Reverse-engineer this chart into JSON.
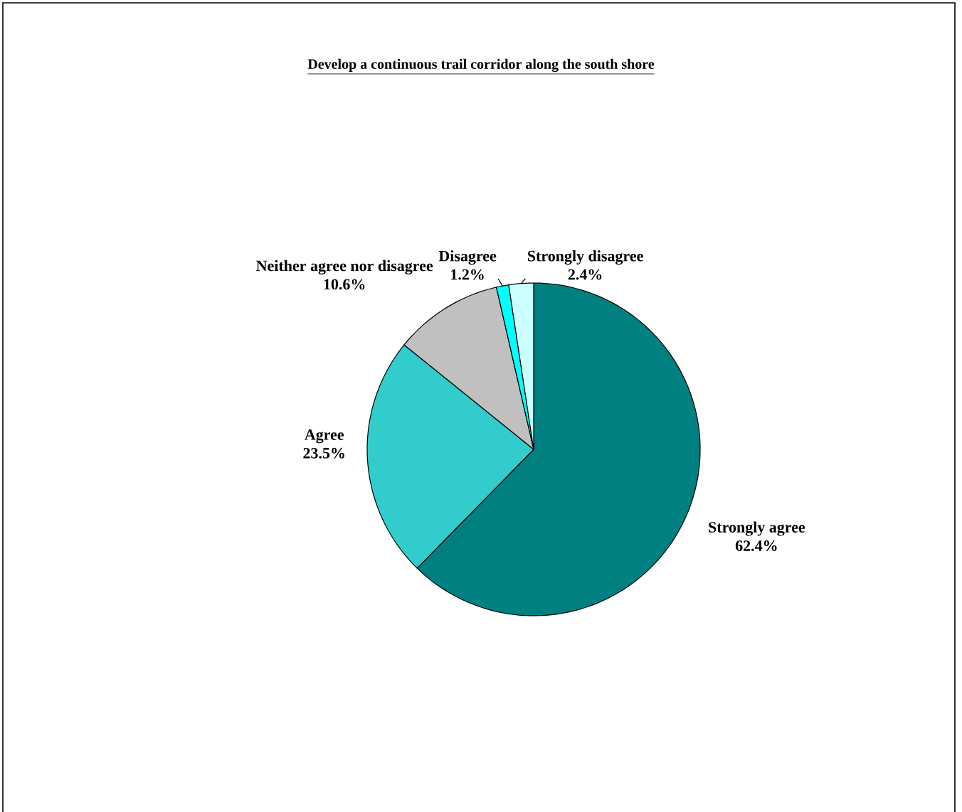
{
  "chart_data": {
    "type": "pie",
    "title": "Develop a continuous trail corridor along the south shore",
    "categories": [
      "Strongly agree",
      "Agree",
      "Neither agree nor disagree",
      "Disagree",
      "Strongly disagree"
    ],
    "values": [
      62.4,
      23.5,
      10.6,
      1.2,
      2.4
    ],
    "value_labels": [
      "62.4%",
      "23.5%",
      "10.6%",
      "1.2%",
      "2.4%"
    ],
    "colors": [
      "#008080",
      "#33cccc",
      "#c0c0c0",
      "#00ffff",
      "#ccffff"
    ]
  }
}
